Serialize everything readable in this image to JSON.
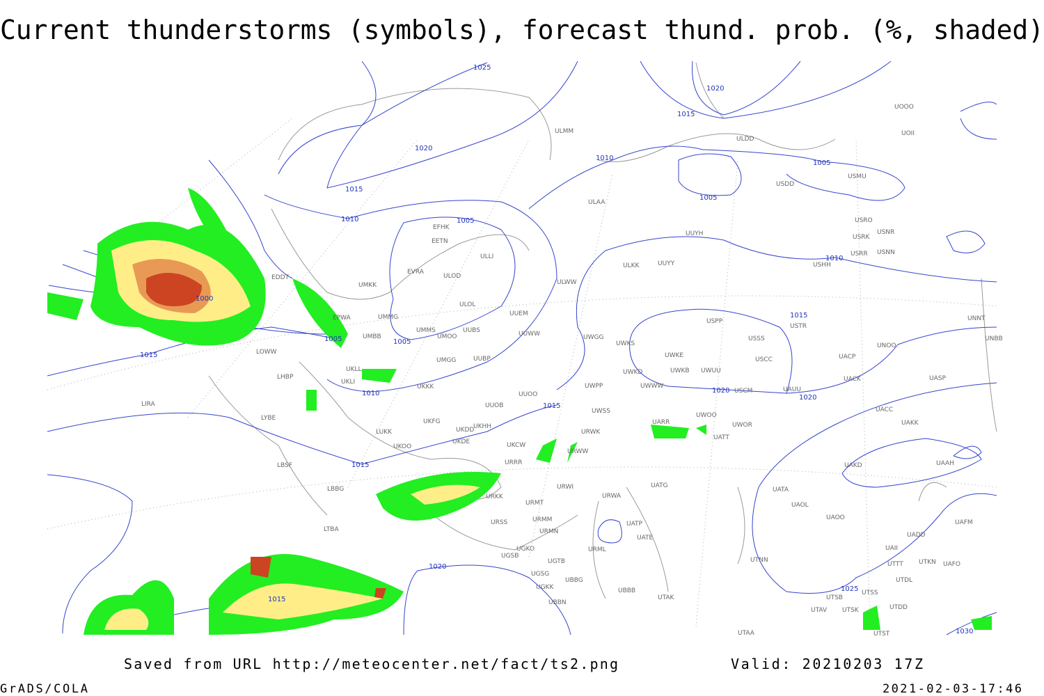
{
  "title": "Current thunderstorms (symbols), forecast thund. prob. (%, shaded)",
  "isobar_labels": [
    1025,
    1020,
    1015,
    1020,
    1010,
    1005,
    1015,
    1005,
    1010,
    1005,
    1010,
    1000,
    1015,
    1005,
    1005,
    1015,
    1010,
    1020,
    1020,
    1015,
    1015,
    1020,
    1015,
    1025,
    1030
  ],
  "stations": [
    "ULMM",
    "ULDD",
    "UOOO",
    "UOII",
    "ULAA",
    "USDD",
    "USMU",
    "UUYH",
    "USRO",
    "USRK",
    "USNR",
    "USRR",
    "USNN",
    "USHH",
    "ULKK",
    "UUYY",
    "EFHK",
    "EETN",
    "ULLI",
    "EVRA",
    "ULOD",
    "ULWW",
    "UMKK",
    "EDDT",
    "ULOL",
    "UUEM",
    "UMMG",
    "UMMS",
    "UMOO",
    "UUBS",
    "UUWW",
    "UMBB",
    "UWGG",
    "UWKS",
    "USPP",
    "USSS",
    "USTR",
    "UNNT",
    "UNBB",
    "UNOO",
    "UWKE",
    "USCC",
    "UACP",
    "UMGG",
    "UUBP",
    "EPWA",
    "LOWW",
    "UKLL",
    "UKLI",
    "LHBP",
    "UWKB",
    "UWUU",
    "UWKD",
    "UACK",
    "UASP",
    "UWPP",
    "UWWW",
    "USCM",
    "UAUU",
    "UKKK",
    "UUOO",
    "UUOB",
    "LIRA",
    "UWSS",
    "UACC",
    "LYBE",
    "UKHH",
    "UKFG",
    "UKDD",
    "UARR",
    "UWOO",
    "UWOR",
    "UAKK",
    "LUKK",
    "URWK",
    "UATT",
    "UKOO",
    "UKDE",
    "UKCW",
    "URWW",
    "UAAH",
    "LBSF",
    "URRR",
    "UAKD",
    "URWI",
    "LBBG",
    "UATG",
    "UATA",
    "URKK",
    "URMT",
    "URWA",
    "UAOL",
    "LTBA",
    "URMM",
    "URSS",
    "UATP",
    "UAOO",
    "UAFM",
    "URMN",
    "UATE",
    "UADD",
    "UGKO",
    "URML",
    "UAII",
    "UGSB",
    "UGTB",
    "UTNN",
    "UTTT",
    "UTKN",
    "UAFO",
    "UGSG",
    "UBBG",
    "UTDL",
    "UGKK",
    "UBBB",
    "UTSS",
    "UTAK",
    "UTSB",
    "UBBN",
    "UTAV",
    "UTSK",
    "UTDD",
    "UTAA",
    "UTST"
  ],
  "footer": {
    "saved": "Saved from URL http://meteocenter.net/fact/ts2.png",
    "valid": "Valid: 20210203 17Z",
    "software": "GrADS/COLA",
    "timestamp": "2021-02-03-17:46"
  }
}
